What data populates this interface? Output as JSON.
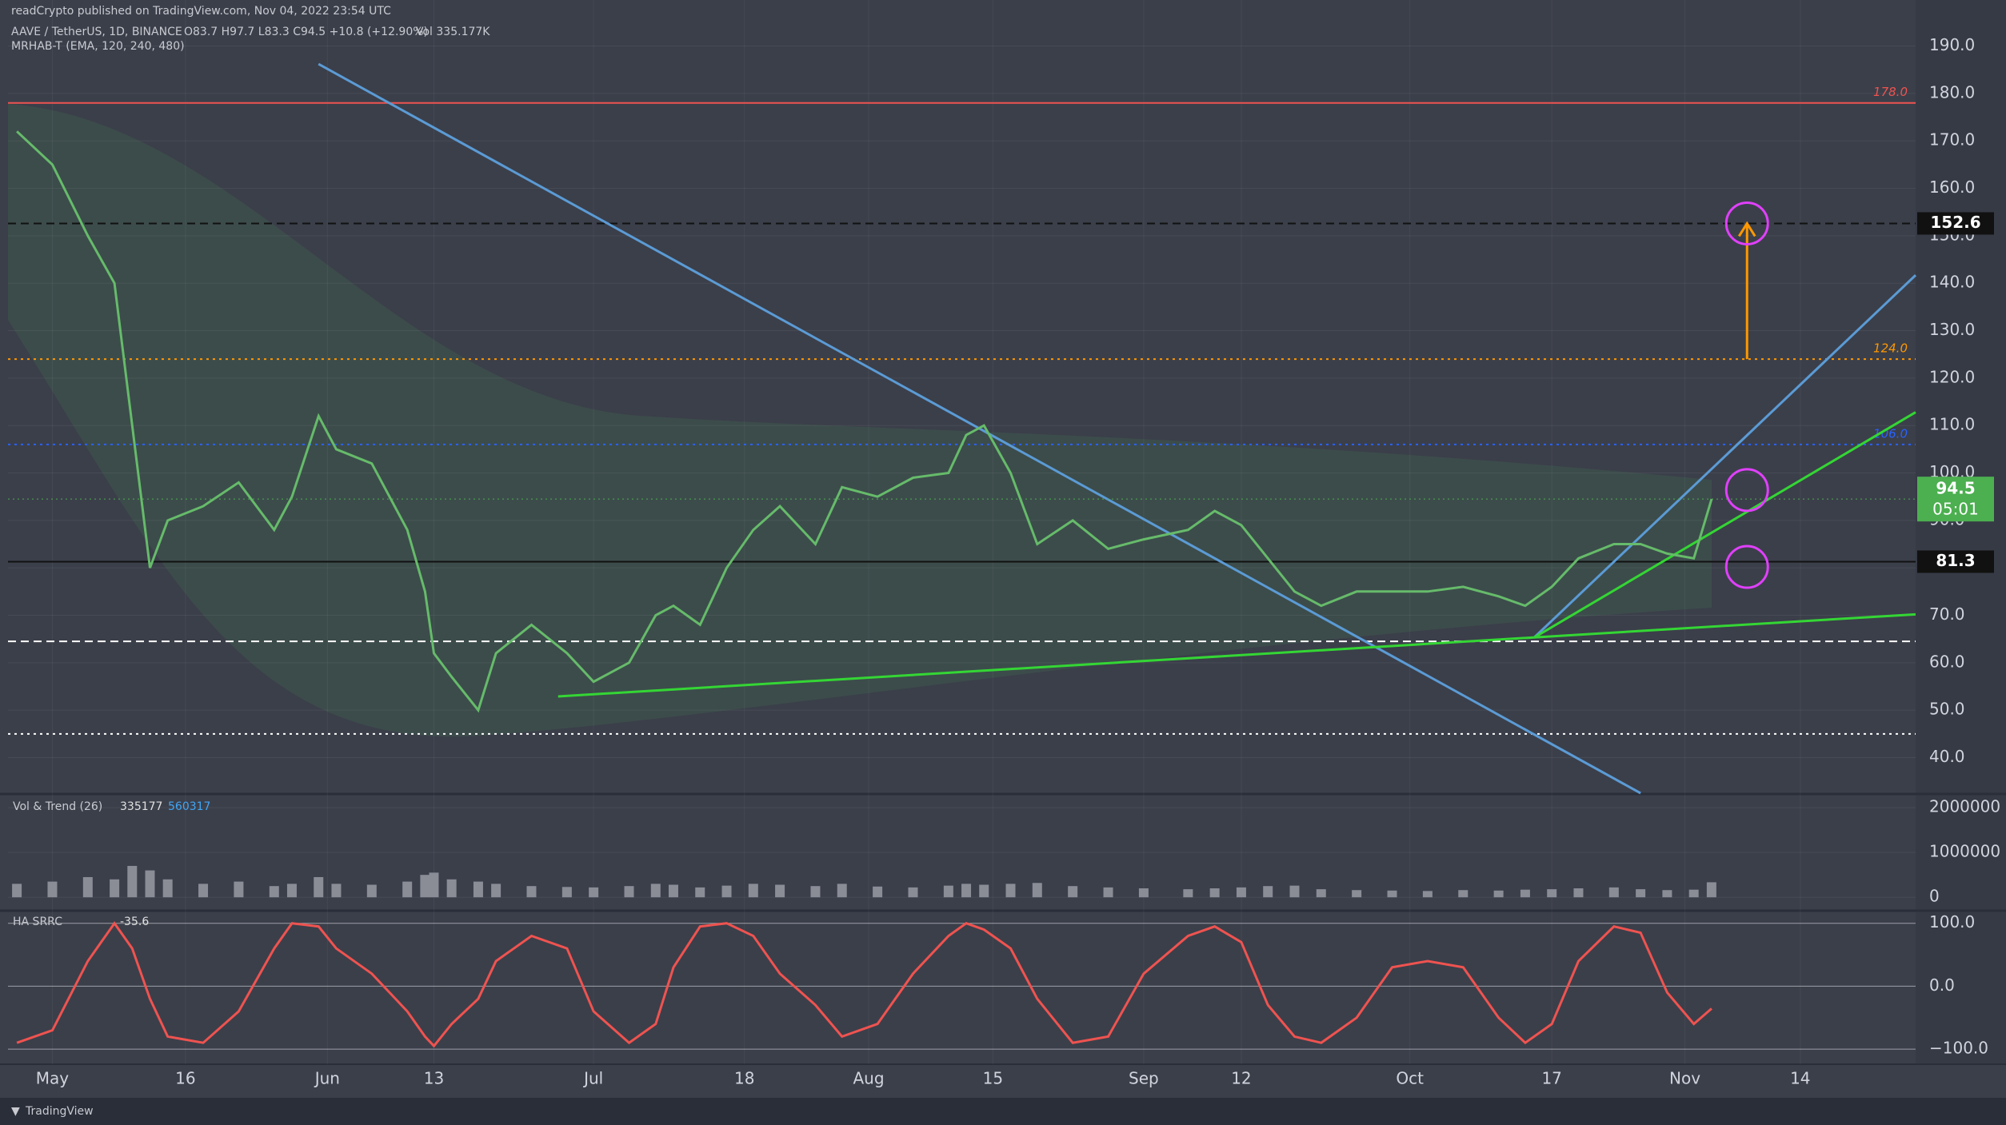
{
  "header": {
    "publisher": "readCrypto published on TradingView.com, Nov 04, 2022 23:54 UTC",
    "symbol": "AAVE / TetherUS, 1D, BINANCE",
    "ohlc": "O83.7 H97.7 L83.3 C94.5 +10.8 (+12.90%)",
    "volume": "Vol 335.177K",
    "indicator": "MRHAB-T (EMA, 120, 240, 480)",
    "brand": "TradingView"
  },
  "chart_data": [
    {
      "type": "line",
      "xlim": [
        "04-26",
        "11-27"
      ],
      "ylim": [
        32.5,
        199.7
      ],
      "yticks": [
        {
          "value": 40,
          "label": "40.0"
        },
        {
          "value": 50,
          "label": "50.0"
        },
        {
          "value": 60,
          "label": "60.0"
        },
        {
          "value": 70,
          "label": "70.0"
        },
        {
          "value": 80,
          "label": "80.0"
        },
        {
          "value": 90,
          "label": "90.0"
        },
        {
          "value": 100,
          "label": "100.0"
        },
        {
          "value": 110,
          "label": "110.0"
        },
        {
          "value": 120,
          "label": "120.0"
        },
        {
          "value": 130,
          "label": "130.0"
        },
        {
          "value": 140,
          "label": "140.0"
        },
        {
          "value": 150,
          "label": "150.0"
        },
        {
          "value": 160,
          "label": "160.0"
        },
        {
          "value": 170,
          "label": "170.0"
        },
        {
          "value": 180,
          "label": "180.0"
        },
        {
          "value": 190,
          "label": "190.0"
        }
      ],
      "xticks": [
        {
          "value": "05-01",
          "label": "May"
        },
        {
          "value": "05-16",
          "label": "16"
        },
        {
          "value": "06-01",
          "label": "Jun"
        },
        {
          "value": "06-13",
          "label": "13"
        },
        {
          "value": "07-01",
          "label": "Jul"
        },
        {
          "value": "07-18",
          "label": "18"
        },
        {
          "value": "08-01",
          "label": "Aug"
        },
        {
          "value": "08-15",
          "label": "15"
        },
        {
          "value": "09-01",
          "label": "Sep"
        },
        {
          "value": "09-12",
          "label": "12"
        },
        {
          "value": "10-01",
          "label": "Oct"
        },
        {
          "value": "10-17",
          "label": "17"
        },
        {
          "value": "11-01",
          "label": "Nov"
        },
        {
          "value": "11-14",
          "label": "14"
        }
      ],
      "x": [
        "04-27",
        "05-01",
        "05-05",
        "05-08",
        "05-10",
        "05-12",
        "05-14",
        "05-18",
        "05-22",
        "05-26",
        "05-28",
        "05-31",
        "06-02",
        "06-06",
        "06-10",
        "06-12",
        "06-13",
        "06-15",
        "06-18",
        "06-20",
        "06-24",
        "06-28",
        "07-01",
        "07-05",
        "07-08",
        "07-10",
        "07-13",
        "07-16",
        "07-19",
        "07-22",
        "07-26",
        "07-29",
        "08-02",
        "08-06",
        "08-10",
        "08-12",
        "08-14",
        "08-17",
        "08-20",
        "08-24",
        "08-28",
        "09-01",
        "09-06",
        "09-09",
        "09-12",
        "09-15",
        "09-18",
        "09-21",
        "09-25",
        "09-29",
        "10-03",
        "10-07",
        "10-11",
        "10-14",
        "10-17",
        "10-20",
        "10-24",
        "10-27",
        "10-30",
        "11-02",
        "11-04"
      ],
      "series": [
        {
          "color": "#66bb6a",
          "values": [
            172,
            165,
            150,
            140,
            110,
            80,
            90,
            93,
            98,
            88,
            95,
            112,
            105,
            102,
            88,
            75,
            62,
            57,
            50,
            62,
            68,
            62,
            56,
            60,
            70,
            72,
            68,
            80,
            88,
            93,
            85,
            97,
            95,
            99,
            100,
            108,
            110,
            100,
            85,
            90,
            84,
            86,
            88,
            92,
            89,
            82,
            75,
            72,
            75,
            75,
            75,
            76,
            74,
            72,
            76,
            82,
            85,
            85,
            83,
            82,
            94.5
          ]
        }
      ],
      "levels": [
        {
          "value": 178,
          "label": "178.0",
          "color": "#ef5350",
          "style": "solid",
          "label_at": "plot"
        },
        {
          "value": 152.6,
          "color": "#111111",
          "style": "dashed",
          "label_at": "axis"
        },
        {
          "value": 124,
          "label": "124.0",
          "color": "#ff9800",
          "style": "dotted",
          "label_at": "plot"
        },
        {
          "value": 106,
          "label": "106.0",
          "color": "#2962ff",
          "style": "dotted",
          "label_at": "plot"
        },
        {
          "value": 81.3,
          "color": "#111111",
          "style": "solid",
          "label_at": "axis"
        },
        {
          "value": 64.5,
          "color": "#ffffff",
          "style": "dashed"
        },
        {
          "value": 45,
          "color": "#ffffff",
          "style": "dotted"
        }
      ],
      "last_price": {
        "value": 94.5,
        "countdown": "05:01",
        "color": "#4caf50"
      },
      "trendlines": [
        {
          "color": "#5b9bd5",
          "points": [
            [
              "05-31",
              186.2
            ],
            [
              "10-27",
              32.5
            ]
          ]
        },
        {
          "color": "#5b9bd5",
          "points": [
            [
              "10-15",
              65.3
            ],
            [
              "11-27",
              141.7
            ]
          ]
        },
        {
          "color": "#34d634",
          "points": [
            [
              "10-15",
              65.3
            ],
            [
              "11-27",
              112.8
            ]
          ]
        },
        {
          "color": "#34d634",
          "points": [
            [
              "06-27",
              52.9
            ],
            [
              "11-27",
              70.2
            ]
          ]
        }
      ],
      "projection": {
        "x": "11-08",
        "from": 124,
        "to": 152.6,
        "color": "#ff9800"
      },
      "markers": {
        "color": "#e040fb",
        "points": [
          {
            "x": "11-08",
            "y": 152.6
          },
          {
            "x": "11-08",
            "y": 96.4
          },
          {
            "x": "11-08",
            "y": 80.2
          }
        ]
      }
    },
    {
      "type": "bar",
      "title": "Vol & Trend (26)",
      "legend_values": [
        335177,
        560317
      ],
      "color": "#8a8d96",
      "xlim": [
        "04-26",
        "11-27"
      ],
      "ylim": [
        -300000,
        2270000
      ],
      "yticks": [
        0,
        1000000,
        2000000
      ],
      "x": [
        "04-27",
        "05-01",
        "05-05",
        "05-08",
        "05-10",
        "05-12",
        "05-14",
        "05-18",
        "05-22",
        "05-26",
        "05-28",
        "05-31",
        "06-02",
        "06-06",
        "06-10",
        "06-12",
        "06-13",
        "06-15",
        "06-18",
        "06-20",
        "06-24",
        "06-28",
        "07-01",
        "07-05",
        "07-08",
        "07-10",
        "07-13",
        "07-16",
        "07-19",
        "07-22",
        "07-26",
        "07-29",
        "08-02",
        "08-06",
        "08-10",
        "08-12",
        "08-14",
        "08-17",
        "08-20",
        "08-24",
        "08-28",
        "09-01",
        "09-06",
        "09-09",
        "09-12",
        "09-15",
        "09-18",
        "09-21",
        "09-25",
        "09-29",
        "10-03",
        "10-07",
        "10-11",
        "10-14",
        "10-17",
        "10-20",
        "10-24",
        "10-27",
        "10-30",
        "11-02",
        "11-04"
      ],
      "values": [
        300000,
        350000,
        450000,
        400000,
        700000,
        600000,
        400000,
        300000,
        350000,
        250000,
        300000,
        450000,
        300000,
        280000,
        350000,
        500000,
        550000,
        400000,
        350000,
        300000,
        250000,
        230000,
        220000,
        250000,
        300000,
        280000,
        220000,
        260000,
        300000,
        280000,
        250000,
        300000,
        240000,
        220000,
        260000,
        300000,
        280000,
        300000,
        320000,
        250000,
        220000,
        200000,
        180000,
        200000,
        220000,
        250000,
        260000,
        180000,
        160000,
        150000,
        140000,
        160000,
        150000,
        170000,
        180000,
        200000,
        220000,
        180000,
        160000,
        170000,
        335177
      ]
    },
    {
      "type": "line",
      "title": "HA SRRC",
      "legend_values": [
        -35.6
      ],
      "xlim": [
        "04-26",
        "11-27"
      ],
      "ylim": [
        -124,
        120
      ],
      "yticks": [
        {
          "value": 100,
          "label": "100.0"
        },
        {
          "value": 0,
          "label": "0.0"
        },
        {
          "value": -100,
          "label": "−100.0"
        }
      ],
      "x": [
        "04-27",
        "05-01",
        "05-05",
        "05-08",
        "05-10",
        "05-12",
        "05-14",
        "05-18",
        "05-22",
        "05-26",
        "05-28",
        "05-31",
        "06-02",
        "06-06",
        "06-10",
        "06-12",
        "06-13",
        "06-15",
        "06-18",
        "06-20",
        "06-24",
        "06-28",
        "07-01",
        "07-05",
        "07-08",
        "07-10",
        "07-13",
        "07-16",
        "07-19",
        "07-22",
        "07-26",
        "07-29",
        "08-02",
        "08-06",
        "08-10",
        "08-12",
        "08-14",
        "08-17",
        "08-20",
        "08-24",
        "08-28",
        "09-01",
        "09-06",
        "09-09",
        "09-12",
        "09-15",
        "09-18",
        "09-21",
        "09-25",
        "09-29",
        "10-03",
        "10-07",
        "10-11",
        "10-14",
        "10-17",
        "10-20",
        "10-24",
        "10-27",
        "10-30",
        "11-02",
        "11-04"
      ],
      "series": [
        {
          "color": "#ef5350",
          "values": [
            -90,
            -70,
            40,
            100,
            60,
            -20,
            -80,
            -90,
            -40,
            60,
            100,
            95,
            60,
            20,
            -40,
            -80,
            -95,
            -60,
            -20,
            40,
            80,
            60,
            -40,
            -90,
            -60,
            30,
            95,
            100,
            80,
            20,
            -30,
            -80,
            -60,
            20,
            80,
            100,
            90,
            60,
            -20,
            -90,
            -80,
            20,
            80,
            95,
            70,
            -30,
            -80,
            -90,
            -50,
            30,
            40,
            30,
            -50,
            -90,
            -60,
            40,
            95,
            85,
            -10,
            -60,
            -35.6
          ]
        }
      ]
    }
  ]
}
